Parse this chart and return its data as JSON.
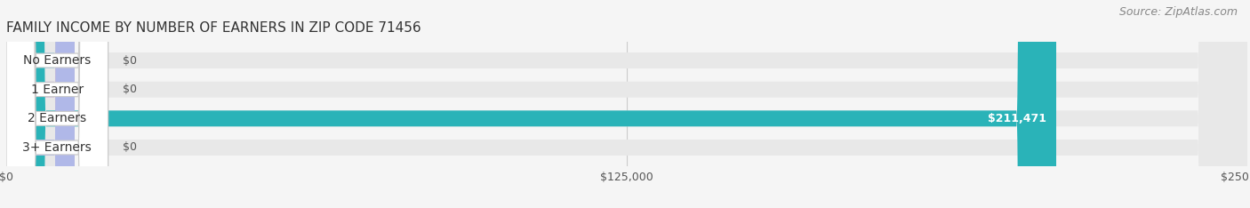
{
  "title": "FAMILY INCOME BY NUMBER OF EARNERS IN ZIP CODE 71456",
  "source": "Source: ZipAtlas.com",
  "categories": [
    "No Earners",
    "1 Earner",
    "2 Earners",
    "3+ Earners"
  ],
  "values": [
    0,
    0,
    211471,
    0
  ],
  "bar_colors": [
    "#a8d0e6",
    "#c9b8d8",
    "#2ab3b8",
    "#b0b8e8"
  ],
  "value_labels": [
    "$0",
    "$0",
    "$211,471",
    "$0"
  ],
  "xlim": [
    0,
    250000
  ],
  "xticks": [
    0,
    125000,
    250000
  ],
  "xtick_labels": [
    "$0",
    "$125,000",
    "$250,000"
  ],
  "bar_height": 0.55,
  "background_color": "#f5f5f5",
  "title_fontsize": 11,
  "source_fontsize": 9,
  "label_fontsize": 10,
  "value_fontsize": 9
}
